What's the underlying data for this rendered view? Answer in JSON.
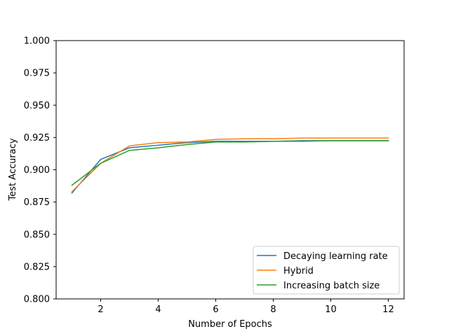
{
  "chart_data": {
    "type": "line",
    "title": "",
    "xlabel": "Number of Epochs",
    "ylabel": "Test Accuracy",
    "xlim": [
      0.45,
      12.55
    ],
    "ylim": [
      0.8,
      1.0
    ],
    "xticks": [
      2,
      4,
      6,
      8,
      10,
      12
    ],
    "xtick_labels": [
      "2",
      "4",
      "6",
      "8",
      "10",
      "12"
    ],
    "yticks": [
      0.8,
      0.825,
      0.85,
      0.875,
      0.9,
      0.925,
      0.95,
      0.975,
      1.0
    ],
    "ytick_labels": [
      "0.800",
      "0.825",
      "0.850",
      "0.875",
      "0.900",
      "0.925",
      "0.950",
      "0.975",
      "1.000"
    ],
    "grid": false,
    "legend_position": "bottom-right",
    "x": [
      1,
      2,
      3,
      4,
      5,
      6,
      7,
      8,
      9,
      10,
      11,
      12
    ],
    "series": [
      {
        "name": "Decaying learning rate",
        "color": "#1f77b4",
        "values": [
          0.882,
          0.908,
          0.917,
          0.919,
          0.921,
          0.922,
          0.922,
          0.922,
          0.9225,
          0.9225,
          0.9225,
          0.9225
        ]
      },
      {
        "name": "Hybrid",
        "color": "#ff7f0e",
        "values": [
          0.883,
          0.905,
          0.9185,
          0.921,
          0.9215,
          0.9235,
          0.924,
          0.924,
          0.9245,
          0.9245,
          0.9245,
          0.9245
        ]
      },
      {
        "name": "Increasing batch size",
        "color": "#2ca02c",
        "values": [
          0.888,
          0.905,
          0.915,
          0.917,
          0.9195,
          0.9215,
          0.9215,
          0.922,
          0.922,
          0.9225,
          0.9225,
          0.9225
        ]
      }
    ]
  }
}
